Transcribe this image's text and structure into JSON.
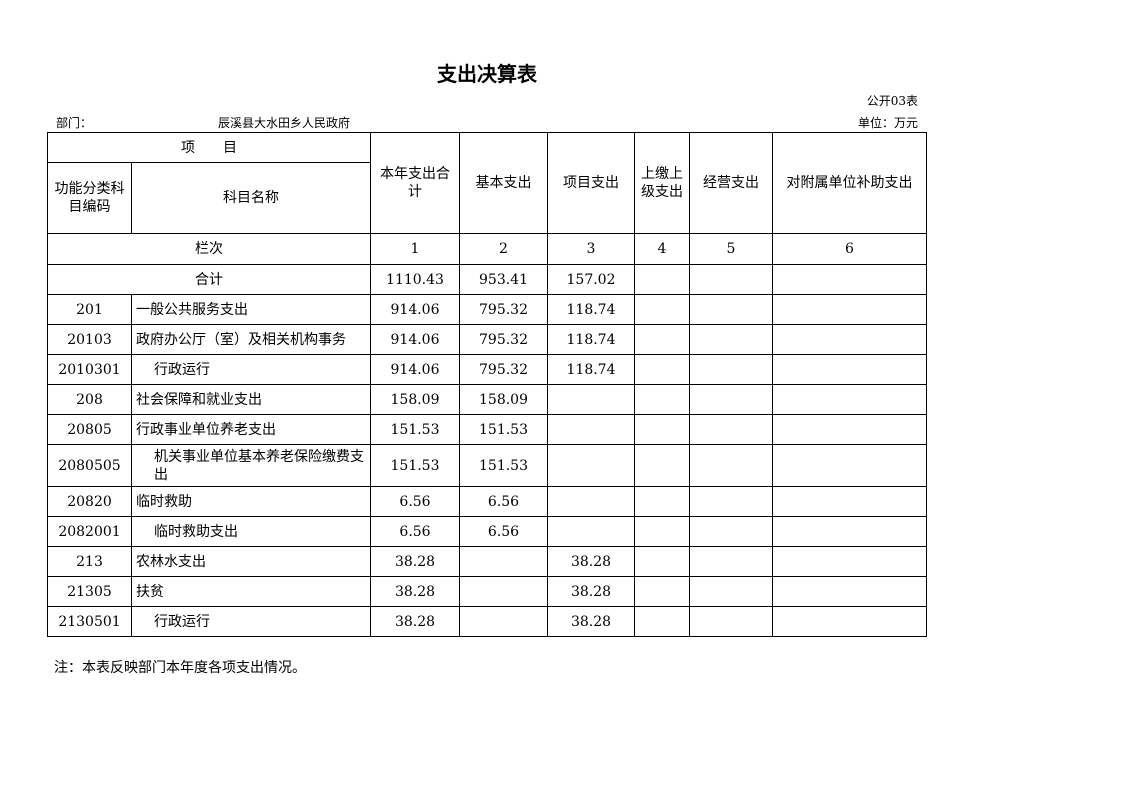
{
  "title": "支出决算表",
  "table_no": "公开03表",
  "dept_label": "部门：",
  "dept_name": "辰溪县大水田乡人民政府",
  "unit": "单位：万元",
  "headers": {
    "item": "项　　目",
    "code": "功能分类科目编码",
    "name": "科目名称",
    "total": "本年支出合计",
    "basic": "基本支出",
    "project": "项目支出",
    "upper": "上缴上级支出",
    "business": "经营支出",
    "subsidy": "对附属单位补助支出"
  },
  "column_index": {
    "label": "栏次",
    "cols": [
      "1",
      "2",
      "3",
      "4",
      "5",
      "6"
    ]
  },
  "total_row": {
    "label": "合计",
    "values": [
      "1110.43",
      "953.41",
      "157.02",
      "",
      "",
      ""
    ]
  },
  "rows": [
    {
      "code": "201",
      "name": "一般公共服务支出",
      "indent": false,
      "values": [
        "914.06",
        "795.32",
        "118.74",
        "",
        "",
        ""
      ]
    },
    {
      "code": "20103",
      "name": "政府办公厅（室）及相关机构事务",
      "indent": false,
      "values": [
        "914.06",
        "795.32",
        "118.74",
        "",
        "",
        ""
      ]
    },
    {
      "code": "2010301",
      "name": "行政运行",
      "indent": true,
      "values": [
        "914.06",
        "795.32",
        "118.74",
        "",
        "",
        ""
      ]
    },
    {
      "code": "208",
      "name": "社会保障和就业支出",
      "indent": false,
      "values": [
        "158.09",
        "158.09",
        "",
        "",
        "",
        ""
      ]
    },
    {
      "code": "20805",
      "name": "行政事业单位养老支出",
      "indent": false,
      "values": [
        "151.53",
        "151.53",
        "",
        "",
        "",
        ""
      ]
    },
    {
      "code": "2080505",
      "name": "机关事业单位基本养老保险缴费支出",
      "indent": true,
      "values": [
        "151.53",
        "151.53",
        "",
        "",
        "",
        ""
      ]
    },
    {
      "code": "20820",
      "name": "临时救助",
      "indent": false,
      "values": [
        "6.56",
        "6.56",
        "",
        "",
        "",
        ""
      ]
    },
    {
      "code": "2082001",
      "name": "临时救助支出",
      "indent": true,
      "values": [
        "6.56",
        "6.56",
        "",
        "",
        "",
        ""
      ]
    },
    {
      "code": "213",
      "name": "农林水支出",
      "indent": false,
      "values": [
        "38.28",
        "",
        "38.28",
        "",
        "",
        ""
      ]
    },
    {
      "code": "21305",
      "name": "扶贫",
      "indent": false,
      "values": [
        "38.28",
        "",
        "38.28",
        "",
        "",
        ""
      ]
    },
    {
      "code": "2130501",
      "name": "行政运行",
      "indent": true,
      "values": [
        "38.28",
        "",
        "38.28",
        "",
        "",
        ""
      ]
    }
  ],
  "note": "注：本表反映部门本年度各项支出情况。"
}
